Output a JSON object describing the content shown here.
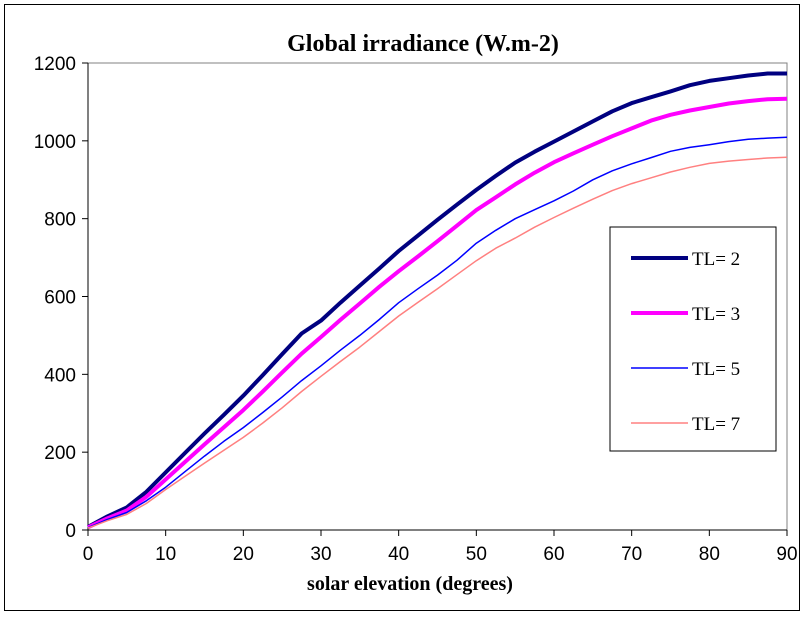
{
  "chart_data": {
    "type": "line",
    "title": "Global irradiance (W.m-2)",
    "xlabel": "solar elevation (degrees)",
    "ylabel": "",
    "xlim": [
      0,
      90
    ],
    "ylim": [
      0,
      1200
    ],
    "x_ticks": [
      0,
      10,
      20,
      30,
      40,
      50,
      60,
      70,
      80,
      90
    ],
    "y_ticks": [
      0,
      200,
      400,
      600,
      800,
      1000,
      1200
    ],
    "grid": false,
    "legend_position": "right",
    "x": [
      0,
      2.5,
      5,
      7.5,
      10,
      12.5,
      15,
      17.5,
      20,
      22.5,
      25,
      27.5,
      30,
      32.5,
      35,
      37.5,
      40,
      42.5,
      45,
      47.5,
      50,
      52.5,
      55,
      57.5,
      60,
      62.5,
      65,
      67.5,
      70,
      72.5,
      75,
      77.5,
      80,
      82.5,
      85,
      87.5,
      90
    ],
    "series": [
      {
        "name": "TL= 2",
        "color": "#000080",
        "width": 4,
        "values": [
          8,
          35,
          58,
          98,
          148,
          198,
          248,
          296,
          345,
          398,
          452,
          505,
          538,
          584,
          628,
          672,
          717,
          757,
          797,
          836,
          874,
          910,
          944,
          972,
          998,
          1024,
          1050,
          1076,
          1097,
          1112,
          1127,
          1143,
          1154,
          1161,
          1168,
          1173,
          1173
        ]
      },
      {
        "name": "TL= 3",
        "color": "#ff00ff",
        "width": 4,
        "values": [
          7,
          30,
          50,
          85,
          130,
          175,
          220,
          264,
          308,
          356,
          405,
          453,
          496,
          540,
          582,
          625,
          665,
          703,
          742,
          782,
          822,
          855,
          888,
          918,
          945,
          968,
          990,
          1012,
          1032,
          1052,
          1067,
          1078,
          1087,
          1096,
          1102,
          1107,
          1108
        ]
      },
      {
        "name": "TL= 5",
        "color": "#0000ff",
        "width": 1.5,
        "values": [
          6,
          27,
          45,
          75,
          110,
          150,
          190,
          228,
          263,
          302,
          342,
          384,
          422,
          462,
          500,
          541,
          584,
          620,
          655,
          693,
          737,
          770,
          800,
          823,
          846,
          871,
          900,
          923,
          941,
          957,
          973,
          983,
          990,
          998,
          1004,
          1007,
          1009
        ]
      },
      {
        "name": "TL= 7",
        "color": "#ff8080",
        "width": 1.5,
        "values": [
          5,
          24,
          40,
          68,
          104,
          138,
          172,
          205,
          238,
          275,
          314,
          356,
          395,
          433,
          470,
          510,
          550,
          585,
          620,
          656,
          692,
          724,
          750,
          778,
          803,
          827,
          850,
          872,
          890,
          905,
          920,
          932,
          942,
          948,
          952,
          956,
          958
        ]
      }
    ]
  }
}
